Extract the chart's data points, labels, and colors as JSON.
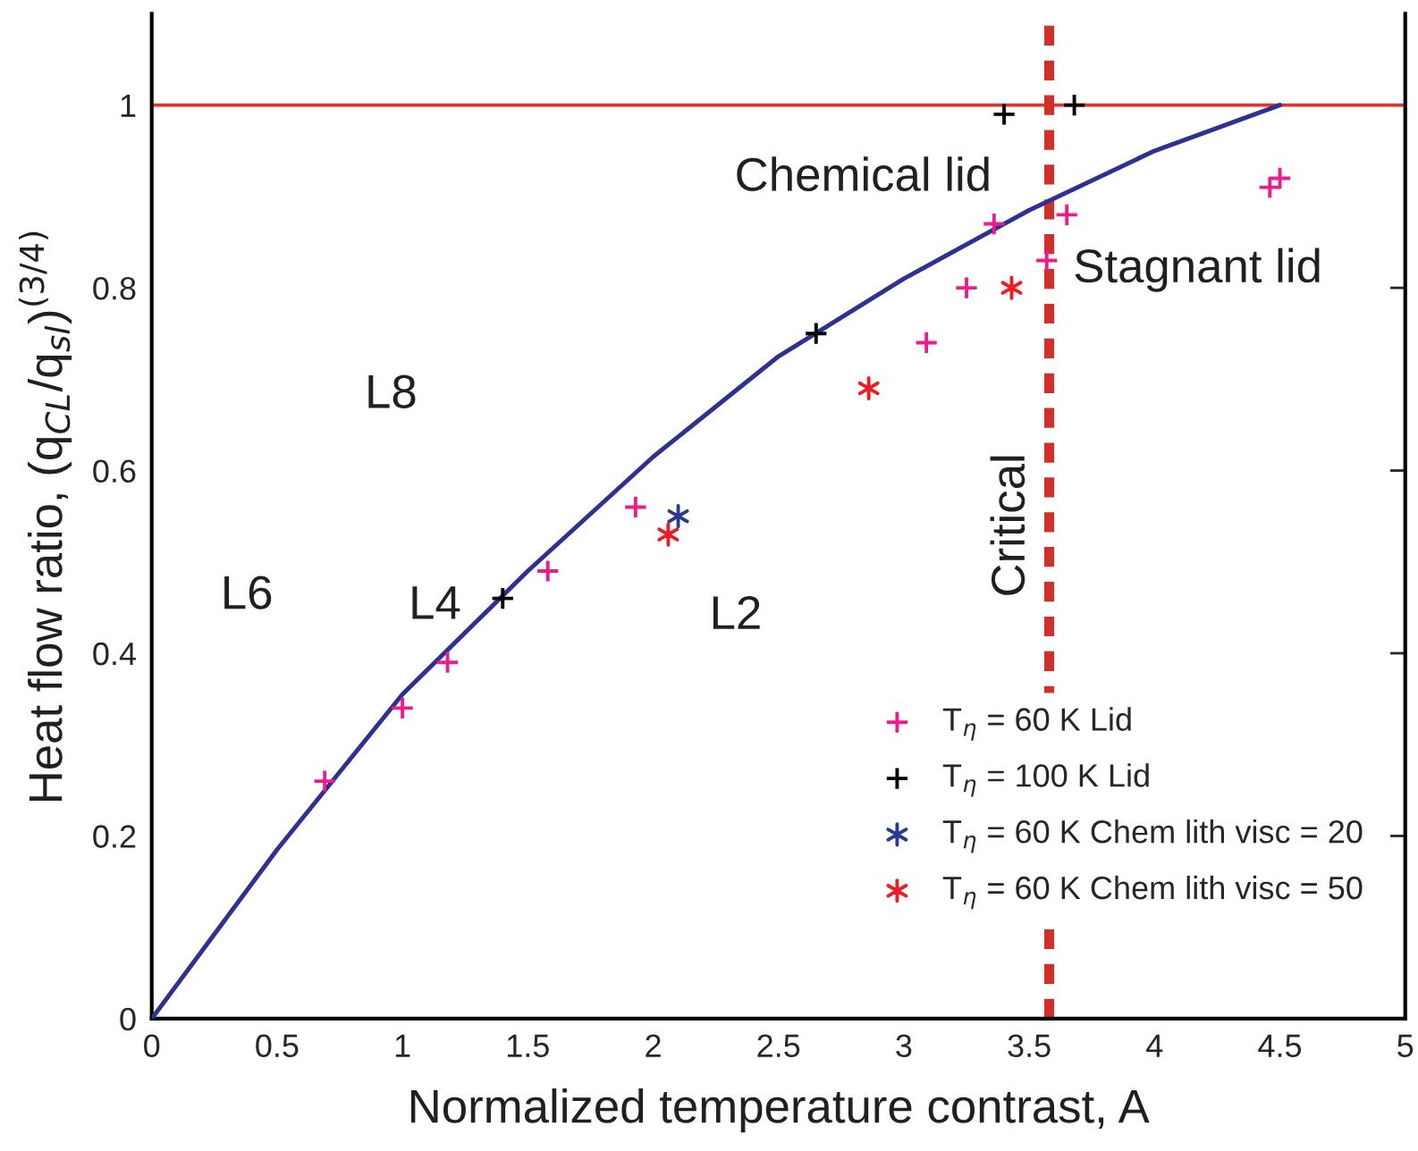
{
  "chart_data": {
    "type": "scatter",
    "xlabel": "Normalized temperature contrast, A",
    "ylabel": "Heat flow ratio, (q$_{CL}$/q$_{sl}$)$^{(3/4)}$",
    "xlim": [
      0,
      5
    ],
    "xticks": [
      0,
      0.5,
      1,
      1.5,
      2,
      2.5,
      3,
      3.5,
      4,
      4.5,
      5
    ],
    "ylim": [
      0,
      1.1
    ],
    "yticks": [
      0,
      0.2,
      0.4,
      0.6,
      0.8,
      1
    ],
    "grid": false,
    "legend": "bottom right",
    "series": [
      {
        "type": "line",
        "color": "#2e3192",
        "marker": "none",
        "line_style": "solid",
        "x": [
          0,
          0.5,
          1,
          1.5,
          2,
          2.5,
          3,
          3.5,
          4,
          4.5
        ],
        "values": [
          0,
          0.185,
          0.355,
          0.49,
          0.615,
          0.725,
          0.81,
          0.885,
          0.95,
          1.0
        ]
      },
      {
        "name": "T$_{η}$ = 60 K Lid",
        "color": "#ec1c8c",
        "marker": "cross",
        "x": [
          0.69,
          1.0,
          1.18,
          1.58,
          1.93,
          3.09,
          3.25,
          3.36,
          3.57,
          3.65,
          4.46,
          4.5
        ],
        "values": [
          0.26,
          0.34,
          0.39,
          0.49,
          0.56,
          0.74,
          0.8,
          0.87,
          0.83,
          0.88,
          0.91,
          0.92
        ]
      },
      {
        "name": "T$_{η}$ = 100 K Lid",
        "color": "#000000",
        "marker": "cross",
        "x": [
          1.4,
          2.65,
          3.4,
          3.68
        ],
        "values": [
          0.46,
          0.75,
          0.99,
          1.0
        ]
      },
      {
        "name": "T$_{η}$ = 60 K Chem lith visc = 20",
        "color": "#2b3990",
        "x": [
          2.1
        ],
        "values": [
          0.55
        ]
      },
      {
        "name": "T$_{η}$ = 60 K Chem lith visc = 50",
        "color": "#ed1c24",
        "x": [
          2.06,
          2.86,
          3.43
        ],
        "values": [
          0.53,
          0.69,
          0.8
        ]
      }
    ],
    "ref_lines": [
      {
        "axis": "y",
        "value": 1,
        "color": "#e0322e",
        "line_style": "solid"
      },
      {
        "axis": "x",
        "value": 3.58,
        "label": "Critical",
        "color": "#d0302a",
        "line_style": "dashed"
      }
    ],
    "annotations": [
      "Chemical lid",
      "Stagnant lid",
      "L8",
      "L6",
      "L4",
      "L2"
    ]
  }
}
